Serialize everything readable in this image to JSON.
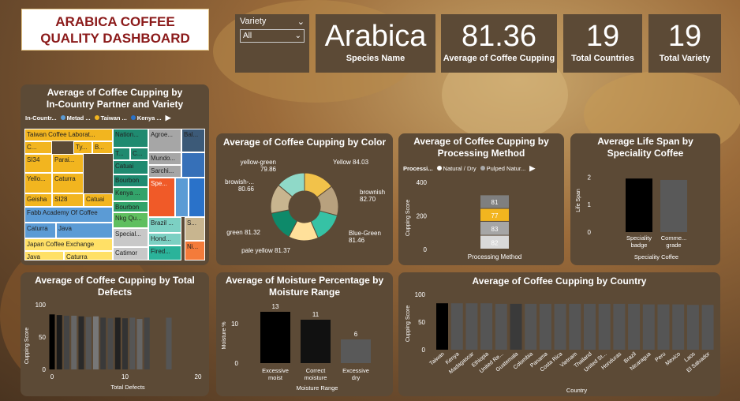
{
  "header": {
    "title_line1": "ARABICA COFFEE",
    "title_line2": "QUALITY DASHBOARD"
  },
  "slicer": {
    "label": "Variety",
    "selected": "All"
  },
  "kpis": [
    {
      "value": "Arabica",
      "label": "Species Name"
    },
    {
      "value": "81.36",
      "label": "Average of Coffee Cupping"
    },
    {
      "value": "19",
      "label": "Total Countries"
    },
    {
      "value": "19",
      "label": "Total Variety"
    }
  ],
  "treemap": {
    "title1": "Average of Coffee Cupping by",
    "title2": "In-Country Partner and Variety",
    "legend": [
      "In-Countr...",
      "Metad ...",
      "Taiwan ...",
      "Kenya ..."
    ],
    "legend_colors": [
      "#5b9bd5",
      "#f2b51f",
      "#2a72c9"
    ],
    "cells": [
      "Taiwan Coffee Laborat...",
      "C...",
      "Ty...",
      "B...",
      "SI34",
      "Parai...",
      "Yello...",
      "Caturra",
      "Geisha",
      "SI28",
      "Catuai",
      "Fabb Academy Of Coffee",
      "Caturra",
      "Java",
      "Japan Coffee Exchange",
      "Java",
      "Caturra",
      "Nation...",
      "T...",
      "C...",
      "Catuai",
      "Bourbon",
      "Kenya ...",
      "Bourbon",
      "Nkg Qu...",
      "Special...",
      "Catimor",
      "Agroe...",
      "Mundo...",
      "Sarchi...",
      "Spe...",
      "Brazil ...",
      "Hond...",
      "Fired...",
      "Bal...",
      "S...",
      "Ni..."
    ]
  },
  "colors": {
    "accent": "#f2b51f",
    "panel": "#5c4a36",
    "title_red": "#8b1a1a"
  },
  "donut": {
    "title": "Average of Coffee Cupping by Color"
  },
  "processing": {
    "title1": "Average of Coffee Cupping by",
    "title2": "Processing Method",
    "legend_label": "Processi...",
    "legend": [
      "Natural / Dry",
      "Pulped Natur..."
    ],
    "xlabel": "Processing Method",
    "ylabel": "Cupping Score"
  },
  "lifespan": {
    "title1": "Average Life Span by",
    "title2": "Speciality Coffee",
    "ylabel": "Life Span",
    "xlabel": "Speciality Coffee"
  },
  "defects": {
    "title1": "Average of Coffee Cupping by Total",
    "title2": "Defects",
    "xlabel": "Total Defects",
    "ylabel": "Cupping Score"
  },
  "moisture": {
    "title1": "Average of Moisture Percentage by",
    "title2": "Moisture Range",
    "xlabel": "Moisture Range",
    "ylabel": "Moisture %"
  },
  "country": {
    "title": "Average of Coffee Cupping by Country",
    "xlabel": "Country",
    "ylabel": "Cupping Score"
  },
  "chart_data": [
    {
      "type": "treemap",
      "title": "Average of Coffee Cupping by In-Country Partner and Variety"
    },
    {
      "type": "pie",
      "title": "Average of Coffee Cupping by Color",
      "categories": [
        "Yellow",
        "brownish",
        "Blue-Green",
        "pale yellow",
        "green",
        "browish-...",
        "yellow-green"
      ],
      "label_text": [
        "Yellow 84.03",
        "brownish\n82.70",
        "Blue-Green\n81.46",
        "pale yellow 81.37",
        "green 81.32",
        "browish-...\n80.66",
        "yellow-green\n79.86"
      ],
      "values": [
        84.03,
        82.7,
        81.46,
        81.37,
        81.32,
        80.66,
        79.86
      ],
      "colors": [
        "#f2c24a",
        "#b8a17e",
        "#36c2a5",
        "#ffe09a",
        "#0e8a6a",
        "#c8b58f",
        "#8fd9c8"
      ]
    },
    {
      "type": "bar",
      "title": "Average of Coffee Cupping by Processing Method",
      "stacked": true,
      "categories": [
        "Processing Method"
      ],
      "segments": [
        {
          "value": 82,
          "label": "82",
          "color": "#d9d9d9"
        },
        {
          "value": 83,
          "label": "83",
          "color": "#a6a6a6"
        },
        {
          "value": 77,
          "label": "77",
          "color": "#f2b51f"
        },
        {
          "value": 81,
          "label": "81",
          "color": "#7f7f7f"
        }
      ],
      "yticks": [
        0,
        200,
        400
      ],
      "ylim": [
        0,
        400
      ]
    },
    {
      "type": "bar",
      "title": "Average Life Span by Speciality Coffee",
      "categories": [
        "Speciality\nbadge",
        "Comme...\ngrade"
      ],
      "values": [
        1.95,
        1.9
      ],
      "colors": [
        "#000000",
        "#595959"
      ],
      "yticks": [
        0,
        1,
        2
      ],
      "ylim": [
        0,
        2.3
      ]
    },
    {
      "type": "bar",
      "title": "Average of Coffee Cupping by Total Defects",
      "x": [
        0,
        1,
        2,
        3,
        4,
        5,
        6,
        7,
        8,
        9,
        10,
        11,
        12,
        13,
        16
      ],
      "values": [
        85,
        84,
        83,
        83,
        82,
        81,
        82,
        80,
        79,
        80,
        79,
        80,
        78,
        80,
        80
      ],
      "xticks": [
        0,
        10,
        20
      ],
      "yticks": [
        0,
        50,
        100
      ],
      "ylim": [
        0,
        100
      ]
    },
    {
      "type": "bar",
      "title": "Average of Moisture Percentage by Moisture Range",
      "categories": [
        "Excessive\nmoist",
        "Correct\nmoisture",
        "Excessive\ndry"
      ],
      "values": [
        13,
        11,
        6
      ],
      "colors": [
        "#000000",
        "#111111",
        "#595959"
      ],
      "yticks": [
        0,
        10
      ],
      "ylim": [
        0,
        14
      ]
    },
    {
      "type": "bar",
      "title": "Average of Coffee Cupping by Country",
      "categories": [
        "Taiwan",
        "Kenya",
        "Madagascar",
        "Ethiopia",
        "United Re...",
        "Guatemala",
        "Colombia",
        "Panama",
        "Costa Rica",
        "Vietnam",
        "Thailand",
        "United St...",
        "Honduras",
        "Brazil",
        "Nicaragua",
        "Peru",
        "Mexico",
        "Laos",
        "El Salvador"
      ],
      "values": [
        84,
        84,
        84,
        84,
        83,
        83,
        83,
        83,
        83,
        83,
        83,
        83,
        83,
        83,
        82,
        82,
        82,
        81,
        81
      ],
      "yticks": [
        0,
        50,
        100
      ],
      "ylim": [
        0,
        100
      ]
    }
  ]
}
